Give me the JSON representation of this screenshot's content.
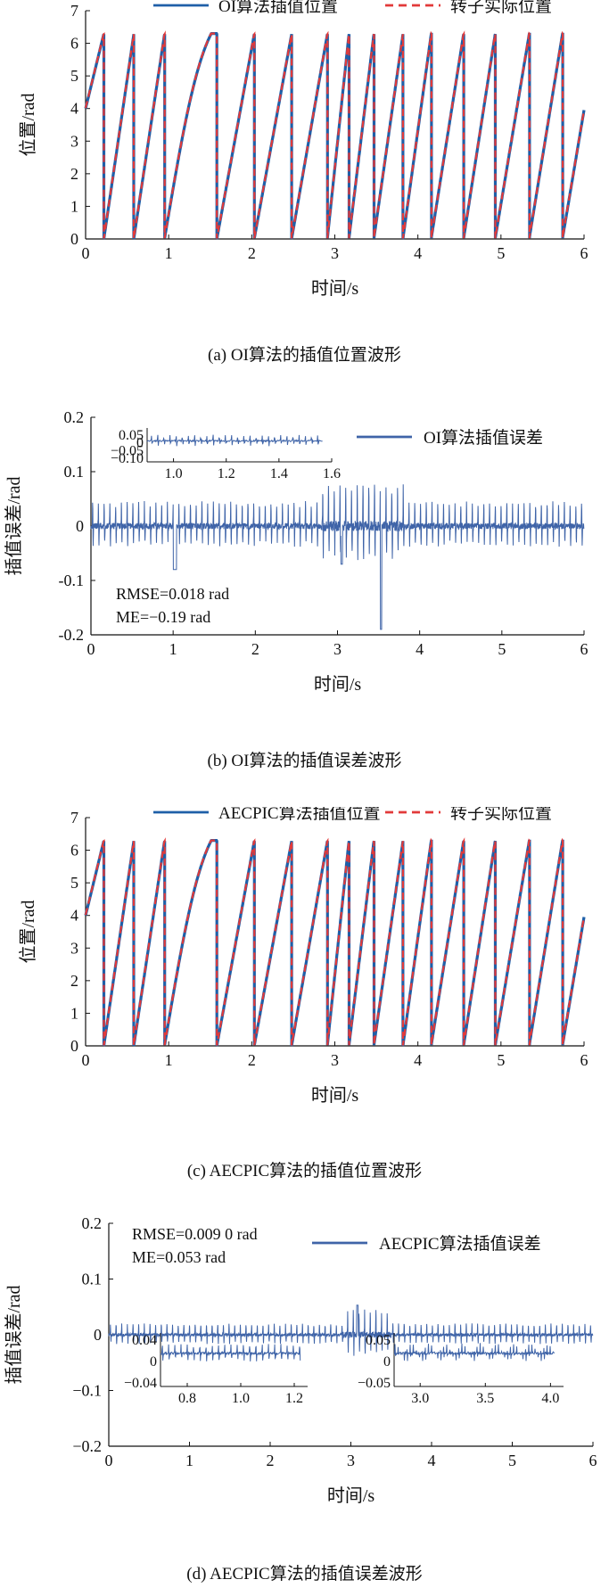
{
  "colors": {
    "interp": "#1f5fa8",
    "actual": "#e23a3a",
    "error": "#3f64a8"
  },
  "chart_data": [
    {
      "type": "line",
      "panel": "a",
      "caption": "(a) OI算法的插值位置波形",
      "xlabel": "时间/s",
      "ylabel": "位置/rad",
      "xlim": [
        0,
        6
      ],
      "ylim": [
        0,
        7
      ],
      "xticks": [
        "0",
        "1",
        "2",
        "3",
        "4",
        "5",
        "6"
      ],
      "yticks": [
        "0",
        "1",
        "2",
        "3",
        "4",
        "5",
        "6",
        "7"
      ],
      "legend_position": "top",
      "wrap_times": [
        0.22,
        0.58,
        0.95,
        1.58,
        2.03,
        2.48,
        2.91,
        3.17,
        3.47,
        3.82,
        4.16,
        4.55,
        4.93,
        5.34,
        5.74
      ],
      "series": [
        {
          "name": "OI算法插值位置",
          "style": "solid",
          "color": "#1f5fa8"
        },
        {
          "name": "转子实际位置",
          "style": "dashed",
          "color": "#e23a3a"
        }
      ]
    },
    {
      "type": "line",
      "panel": "b",
      "caption": "(b) OI算法的插值误差波形",
      "xlabel": "时间/s",
      "ylabel": "插值误差/rad",
      "xlim": [
        0,
        6
      ],
      "ylim": [
        -0.2,
        0.2
      ],
      "xticks": [
        "0",
        "1",
        "2",
        "3",
        "4",
        "5",
        "6"
      ],
      "yticks": [
        "-0.2",
        "-0.1",
        "0",
        "0.1",
        "0.2"
      ],
      "legend_position": "top-right",
      "series": [
        {
          "name": "OI算法插值误差",
          "style": "solid",
          "color": "#3f64a8"
        }
      ],
      "annotations": [
        "RMSE=0.018 rad",
        "ME=−0.19 rad"
      ],
      "min_error": {
        "x": 3.53,
        "y": -0.19
      },
      "insets": [
        {
          "position": "top-left",
          "xlim": [
            0.9,
            1.6
          ],
          "ylim": [
            -0.1,
            0.05
          ],
          "xticks": [
            "1.0",
            "1.2",
            "1.4",
            "1.6"
          ],
          "yticks": [
            "0.05",
            "0",
            "−0.05",
            "−0.10"
          ]
        }
      ]
    },
    {
      "type": "line",
      "panel": "c",
      "caption": "(c) AECPIC算法的插值位置波形",
      "xlabel": "时间/s",
      "ylabel": "位置/rad",
      "xlim": [
        0,
        6
      ],
      "ylim": [
        0,
        7
      ],
      "xticks": [
        "0",
        "1",
        "2",
        "3",
        "4",
        "5",
        "6"
      ],
      "yticks": [
        "0",
        "1",
        "2",
        "3",
        "4",
        "5",
        "6",
        "7"
      ],
      "legend_position": "top",
      "wrap_times": [
        0.22,
        0.58,
        0.95,
        1.58,
        2.03,
        2.48,
        2.91,
        3.17,
        3.47,
        3.82,
        4.16,
        4.55,
        4.93,
        5.34,
        5.74
      ],
      "series": [
        {
          "name": "AECPIC算法插值位置",
          "style": "solid",
          "color": "#1f5fa8"
        },
        {
          "name": "转子实际位置",
          "style": "dashed",
          "color": "#e23a3a"
        }
      ]
    },
    {
      "type": "line",
      "panel": "d",
      "caption": "(d) AECPIC算法的插值误差波形",
      "xlabel": "时间/s",
      "ylabel": "插值误差/rad",
      "xlim": [
        0,
        6
      ],
      "ylim": [
        -0.2,
        0.2
      ],
      "xticks": [
        "0",
        "1",
        "2",
        "3",
        "4",
        "5",
        "6"
      ],
      "yticks": [
        "−0.2",
        "−0.1",
        "0",
        "0.1",
        "0.2"
      ],
      "legend_position": "top-right",
      "series": [
        {
          "name": "AECPIC算法插值误差",
          "style": "solid",
          "color": "#3f64a8"
        }
      ],
      "annotations": [
        "RMSE=0.009 0 rad",
        "ME=0.053 rad"
      ],
      "insets": [
        {
          "position": "bottom-left",
          "xlim": [
            0.7,
            1.25
          ],
          "ylim": [
            -0.04,
            0.04
          ],
          "xticks": [
            "0.8",
            "1.0",
            "1.2"
          ],
          "yticks": [
            "0.04",
            "0",
            "−0.04"
          ]
        },
        {
          "position": "bottom-right",
          "xlim": [
            2.8,
            4.1
          ],
          "ylim": [
            -0.06,
            0.06
          ],
          "xticks": [
            "3.0",
            "3.5",
            "4.0"
          ],
          "yticks": [
            "0.05",
            "0",
            "−0.05"
          ]
        }
      ]
    }
  ]
}
